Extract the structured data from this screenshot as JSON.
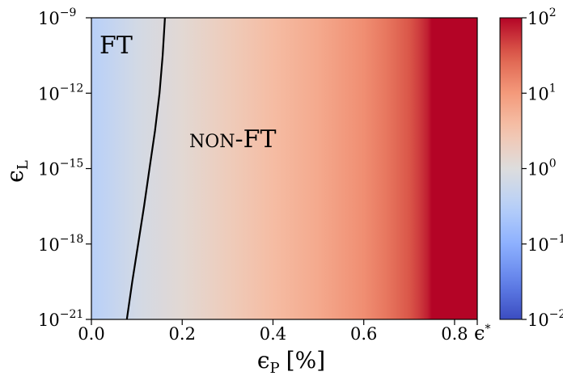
{
  "chart_data": {
    "type": "heatmap",
    "x_axis": {
      "label_main": "ϵ",
      "label_sub": "P",
      "label_unit": "[%]",
      "range": [
        0,
        0.85
      ],
      "ticks": [
        {
          "value": 0.0,
          "label": "0.0"
        },
        {
          "value": 0.2,
          "label": "0.2"
        },
        {
          "value": 0.4,
          "label": "0.4"
        },
        {
          "value": 0.6,
          "label": "0.6"
        },
        {
          "value": 0.8,
          "label": "0.8"
        }
      ],
      "end_marker": {
        "value": 0.85,
        "label": "ϵ",
        "sup": "*"
      }
    },
    "y_axis": {
      "label_main": "ϵ",
      "label_sub": "L",
      "scale": "log",
      "range_exp": [
        -21,
        -9
      ],
      "ticks": [
        {
          "exp": -21,
          "base": "10",
          "sup": "−21"
        },
        {
          "exp": -18,
          "base": "10",
          "sup": "−18"
        },
        {
          "exp": -15,
          "base": "10",
          "sup": "−15"
        },
        {
          "exp": -12,
          "base": "10",
          "sup": "−12"
        },
        {
          "exp": -9,
          "base": "10",
          "sup": "−9"
        }
      ]
    },
    "colorbar": {
      "scale": "log",
      "colormap": "coolwarm",
      "range_exp": [
        -2,
        2
      ],
      "ticks": [
        {
          "exp": -2,
          "base": "10",
          "sup": "−2"
        },
        {
          "exp": -1,
          "base": "10",
          "sup": "−1"
        },
        {
          "exp": 0,
          "base": "10",
          "sup": "0"
        },
        {
          "exp": 1,
          "base": "10",
          "sup": "1"
        },
        {
          "exp": 2,
          "base": "10",
          "sup": "2"
        }
      ]
    },
    "field_profile": {
      "x": [
        0.0,
        0.1,
        0.2,
        0.3,
        0.4,
        0.5,
        0.6,
        0.65,
        0.7,
        0.72,
        0.74,
        0.75,
        0.85
      ],
      "log10_value": [
        -0.5,
        -0.15,
        0.1,
        0.35,
        0.6,
        0.82,
        1.1,
        1.3,
        1.55,
        1.68,
        1.85,
        2.0,
        2.0
      ]
    },
    "boundary": {
      "points": [
        {
          "x": 0.078,
          "log10_y": -21
        },
        {
          "x": 0.09,
          "log10_y": -19.5
        },
        {
          "x": 0.103,
          "log10_y": -18
        },
        {
          "x": 0.116,
          "log10_y": -16.5
        },
        {
          "x": 0.128,
          "log10_y": -15
        },
        {
          "x": 0.14,
          "log10_y": -13.5
        },
        {
          "x": 0.15,
          "log10_y": -12
        },
        {
          "x": 0.157,
          "log10_y": -10.5
        },
        {
          "x": 0.162,
          "log10_y": -9
        }
      ]
    },
    "regions": {
      "ft": "FT",
      "non_ft_prefix": "NON",
      "non_ft_suffix": "-FT"
    }
  }
}
